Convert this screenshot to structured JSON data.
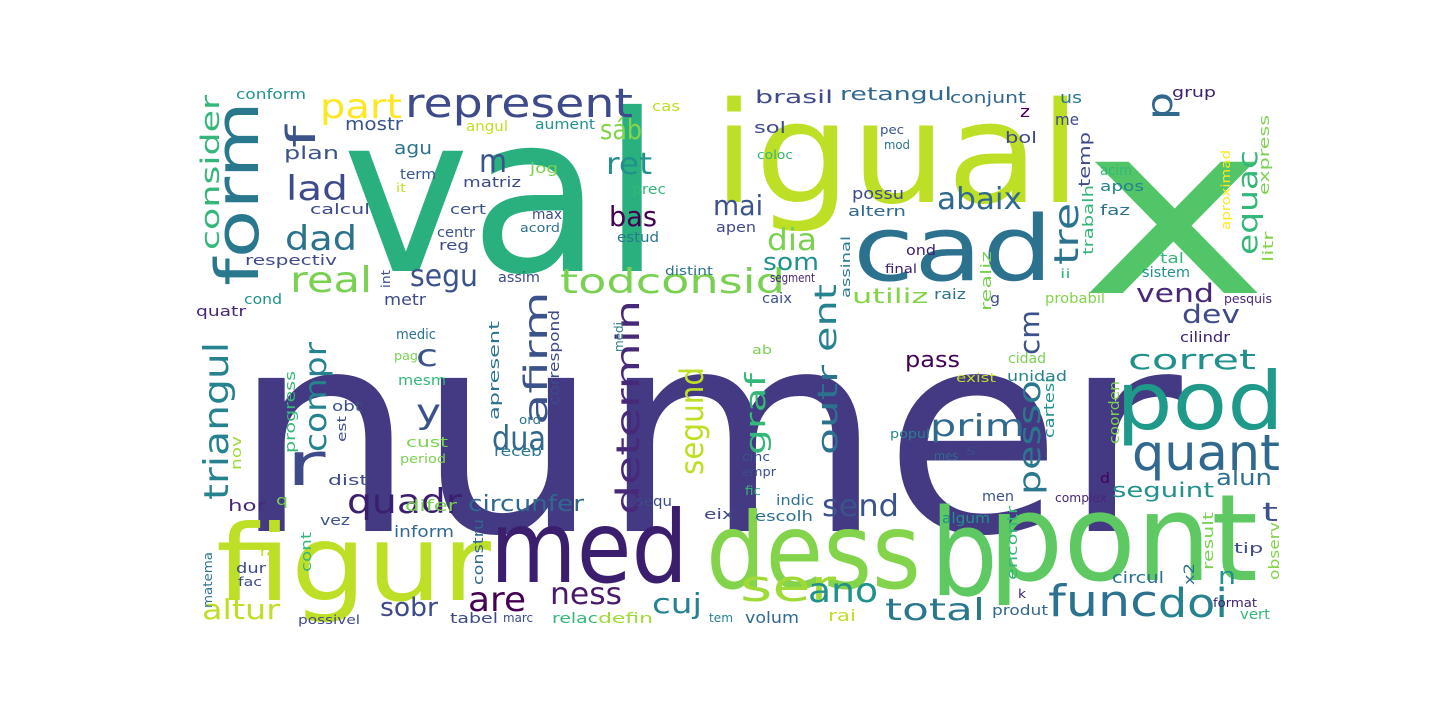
{
  "cloud": {
    "words": [
      {
        "text": "numer",
        "color": "#443983"
      },
      {
        "text": "val",
        "color": "#2ab07f"
      },
      {
        "text": "igual",
        "color": "#bddf26"
      },
      {
        "text": "x",
        "color": "#52c569"
      },
      {
        "text": "cad",
        "color": "#2c728e"
      },
      {
        "text": "pont",
        "color": "#5ec962"
      },
      {
        "text": "b",
        "color": "#5ec962"
      },
      {
        "text": "dess",
        "color": "#84d44b"
      },
      {
        "text": "figur",
        "color": "#bddf26"
      },
      {
        "text": "med",
        "color": "#3b1f6e"
      },
      {
        "text": "pod",
        "color": "#1f9a8a"
      },
      {
        "text": "form",
        "color": "#2a788e"
      },
      {
        "text": "r",
        "color": "#3e4a89"
      },
      {
        "text": "quant",
        "color": "#31688e"
      },
      {
        "text": "func",
        "color": "#2c728e"
      },
      {
        "text": "doi",
        "color": "#26828e"
      },
      {
        "text": "represent",
        "color": "#3e4a89"
      },
      {
        "text": "part",
        "color": "#fde725"
      },
      {
        "text": "f",
        "color": "#3b528b"
      },
      {
        "text": "p",
        "color": "#31688e"
      },
      {
        "text": "consider",
        "color": "#35b779"
      },
      {
        "text": "triangul",
        "color": "#26828e"
      },
      {
        "text": "todconsid",
        "color": "#7ad151"
      },
      {
        "text": "real",
        "color": "#7ad151"
      },
      {
        "text": "dad",
        "color": "#2c728e"
      },
      {
        "text": "lad",
        "color": "#3e4a89"
      },
      {
        "text": "m",
        "color": "#3b528b"
      },
      {
        "text": "sáb",
        "color": "#84d44b"
      },
      {
        "text": "ret",
        "color": "#21918c"
      },
      {
        "text": "bas",
        "color": "#440154"
      },
      {
        "text": "mai",
        "color": "#3b528b"
      },
      {
        "text": "dia",
        "color": "#7ad151"
      },
      {
        "text": "som",
        "color": "#21918c"
      },
      {
        "text": "abaix",
        "color": "#31688e"
      },
      {
        "text": "tre",
        "color": "#2c728e"
      },
      {
        "text": "equac",
        "color": "#35b779"
      },
      {
        "text": "segu",
        "color": "#3b528b"
      },
      {
        "text": "afirm",
        "color": "#3b528b"
      },
      {
        "text": "determin",
        "color": "#482878"
      },
      {
        "text": "dua",
        "color": "#31688e"
      },
      {
        "text": "segund",
        "color": "#bddf26"
      },
      {
        "text": "graf",
        "color": "#35b779"
      },
      {
        "text": "outr",
        "color": "#2c728e"
      },
      {
        "text": "ent",
        "color": "#26828e"
      },
      {
        "text": "cm",
        "color": "#3b528b"
      },
      {
        "text": "pesso",
        "color": "#2a788e"
      },
      {
        "text": "prim",
        "color": "#31688e"
      },
      {
        "text": "dev",
        "color": "#3e4a89"
      },
      {
        "text": "corret",
        "color": "#21918c"
      },
      {
        "text": "vend",
        "color": "#482878"
      },
      {
        "text": "compr",
        "color": "#26828e"
      },
      {
        "text": "c",
        "color": "#3b528b"
      },
      {
        "text": "y",
        "color": "#3b528b"
      },
      {
        "text": "quadr",
        "color": "#3b1f6e"
      },
      {
        "text": "circunfer",
        "color": "#31688e"
      },
      {
        "text": "ser",
        "color": "#a0da39"
      },
      {
        "text": "ano",
        "color": "#21918c"
      },
      {
        "text": "send",
        "color": "#3b528b"
      },
      {
        "text": "total",
        "color": "#2a788e"
      },
      {
        "text": "are",
        "color": "#440154"
      },
      {
        "text": "ness",
        "color": "#481a6c"
      },
      {
        "text": "cuj",
        "color": "#26828e"
      },
      {
        "text": "sobr",
        "color": "#3e4a89"
      },
      {
        "text": "altur",
        "color": "#bddf26"
      },
      {
        "text": "seguint",
        "color": "#21918c"
      },
      {
        "text": "alun",
        "color": "#2c728e"
      },
      {
        "text": "t",
        "color": "#3b528b"
      },
      {
        "text": "n",
        "color": "#21918c"
      },
      {
        "text": "pass",
        "color": "#440154"
      },
      {
        "text": "utiliz",
        "color": "#84d44b"
      },
      {
        "text": "brasil",
        "color": "#3e4a89"
      },
      {
        "text": "retangul",
        "color": "#31688e"
      },
      {
        "text": "conjunt",
        "color": "#31688e"
      },
      {
        "text": "mostr",
        "color": "#3b528b"
      },
      {
        "text": "plan",
        "color": "#3b528b"
      },
      {
        "text": "agu",
        "color": "#2c728e"
      },
      {
        "text": "conform",
        "color": "#21918c"
      },
      {
        "text": "us",
        "color": "#2a788e"
      },
      {
        "text": "me",
        "color": "#3e4a89"
      },
      {
        "text": "grup",
        "color": "#3b1f6e"
      },
      {
        "text": "sol",
        "color": "#3e4a89"
      },
      {
        "text": "bol",
        "color": "#3e4a89"
      },
      {
        "text": "z",
        "color": "#440154"
      },
      {
        "text": "pec",
        "color": "#3b528b"
      },
      {
        "text": "mod",
        "color": "#2c728e"
      },
      {
        "text": "coloc",
        "color": "#35b779"
      },
      {
        "text": "temp",
        "color": "#3e4a89"
      },
      {
        "text": "express",
        "color": "#7ad151"
      },
      {
        "text": "acim",
        "color": "#35b779"
      },
      {
        "text": "apos",
        "color": "#26828e"
      },
      {
        "text": "faz",
        "color": "#2c728e"
      },
      {
        "text": "trabalh",
        "color": "#35b779"
      },
      {
        "text": "aproximad",
        "color": "#fde725"
      },
      {
        "text": "possu",
        "color": "#3e4a89"
      },
      {
        "text": "altern",
        "color": "#31688e"
      },
      {
        "text": "apen",
        "color": "#3e4a89"
      },
      {
        "text": "ond",
        "color": "#3b1f6e"
      },
      {
        "text": "final",
        "color": "#3b1f6e"
      },
      {
        "text": "segment",
        "color": "#482878"
      },
      {
        "text": "assinal",
        "color": "#2a788e"
      },
      {
        "text": "tal",
        "color": "#35b779"
      },
      {
        "text": "sistem",
        "color": "#21918c"
      },
      {
        "text": "litr",
        "color": "#84d44b"
      },
      {
        "text": "realiz",
        "color": "#7ad151"
      },
      {
        "text": "raiz",
        "color": "#2c728e"
      },
      {
        "text": "caix",
        "color": "#3b528b"
      },
      {
        "text": "g",
        "color": "#3e4a89"
      },
      {
        "text": "probabil",
        "color": "#84d44b"
      },
      {
        "text": "pesquis",
        "color": "#482878"
      },
      {
        "text": "ii",
        "color": "#35b779"
      },
      {
        "text": "cilindr",
        "color": "#3b1f6e"
      },
      {
        "text": "cidad",
        "color": "#7ad151"
      },
      {
        "text": "unidad",
        "color": "#26828e"
      },
      {
        "text": "cartesi",
        "color": "#21918c"
      },
      {
        "text": "coorden",
        "color": "#7ad151"
      },
      {
        "text": "exist",
        "color": "#bddf26"
      },
      {
        "text": "ab",
        "color": "#7ad151"
      },
      {
        "text": "popul",
        "color": "#26828e"
      },
      {
        "text": "mes",
        "color": "#31688e"
      },
      {
        "text": "s",
        "color": "#3e4a89"
      },
      {
        "text": "d",
        "color": "#440154"
      },
      {
        "text": "complex",
        "color": "#482878"
      },
      {
        "text": "men",
        "color": "#3b528b"
      },
      {
        "text": "indic",
        "color": "#2c728e"
      },
      {
        "text": "escolh",
        "color": "#2c728e"
      },
      {
        "text": "algum",
        "color": "#21918c"
      },
      {
        "text": "eix",
        "color": "#3e4a89"
      },
      {
        "text": "fic",
        "color": "#35b779"
      },
      {
        "text": "empr",
        "color": "#3e4a89"
      },
      {
        "text": "cinc",
        "color": "#3b528b"
      },
      {
        "text": "sequ",
        "color": "#3e4a89"
      },
      {
        "text": "encontr",
        "color": "#35b779"
      },
      {
        "text": "result",
        "color": "#7ad151"
      },
      {
        "text": "observ",
        "color": "#84d44b"
      },
      {
        "text": "tip",
        "color": "#3e4a89"
      },
      {
        "text": "x2",
        "color": "#2c728e"
      },
      {
        "text": "circul",
        "color": "#2c728e"
      },
      {
        "text": "k",
        "color": "#3b1f6e"
      },
      {
        "text": "produt",
        "color": "#31688e"
      },
      {
        "text": "format",
        "color": "#3b1f6e"
      },
      {
        "text": "vert",
        "color": "#35b779"
      },
      {
        "text": "rai",
        "color": "#bddf26"
      },
      {
        "text": "volum",
        "color": "#31688e"
      },
      {
        "text": "tem",
        "color": "#26828e"
      },
      {
        "text": "defin",
        "color": "#a0da39"
      },
      {
        "text": "relac",
        "color": "#35b779"
      },
      {
        "text": "marc",
        "color": "#3e4a89"
      },
      {
        "text": "tabel",
        "color": "#3e4a89"
      },
      {
        "text": "constru",
        "color": "#31688e"
      },
      {
        "text": "inform",
        "color": "#31688e"
      },
      {
        "text": "difer",
        "color": "#7ad151"
      },
      {
        "text": "receb",
        "color": "#2a788e"
      },
      {
        "text": "period",
        "color": "#7ad151"
      },
      {
        "text": "cust",
        "color": "#7ad151"
      },
      {
        "text": "dist",
        "color": "#3e4a89"
      },
      {
        "text": "vez",
        "color": "#3b528b"
      },
      {
        "text": "hor",
        "color": "#482878"
      },
      {
        "text": "q",
        "color": "#7ad151"
      },
      {
        "text": "obt",
        "color": "#3b528b"
      },
      {
        "text": "est",
        "color": "#3e4a89"
      },
      {
        "text": "mesm",
        "color": "#35b779"
      },
      {
        "text": "progress",
        "color": "#35b779"
      },
      {
        "text": "nov",
        "color": "#a0da39"
      },
      {
        "text": "cont",
        "color": "#35b779"
      },
      {
        "text": "dur",
        "color": "#3e4a89"
      },
      {
        "text": "fac",
        "color": "#3e4a89"
      },
      {
        "text": "ra",
        "color": "#bddf26"
      },
      {
        "text": "matema",
        "color": "#2c728e"
      },
      {
        "text": "possivel",
        "color": "#3e4a89"
      },
      {
        "text": "quatr",
        "color": "#482878"
      },
      {
        "text": "cond",
        "color": "#21918c"
      },
      {
        "text": "respectiv",
        "color": "#3e4a89"
      },
      {
        "text": "metr",
        "color": "#3e4a89"
      },
      {
        "text": "medic",
        "color": "#2c728e"
      },
      {
        "text": "pag",
        "color": "#7ad151"
      },
      {
        "text": "int",
        "color": "#3b528b"
      },
      {
        "text": "assim",
        "color": "#3e4a89"
      },
      {
        "text": "apresent",
        "color": "#2c728e"
      },
      {
        "text": "correspond",
        "color": "#3e4a89"
      },
      {
        "text": "ord",
        "color": "#2c728e"
      },
      {
        "text": "medi",
        "color": "#2a788e"
      },
      {
        "text": "distint",
        "color": "#2c728e"
      },
      {
        "text": "centr",
        "color": "#3b528b"
      },
      {
        "text": "reg",
        "color": "#3e4a89"
      },
      {
        "text": "cert",
        "color": "#3b528b"
      },
      {
        "text": "calcul",
        "color": "#3e4a89"
      },
      {
        "text": "term",
        "color": "#3b528b"
      },
      {
        "text": "it",
        "color": "#bddf26"
      },
      {
        "text": "matriz",
        "color": "#3e4a89"
      },
      {
        "text": "jog",
        "color": "#7ad151"
      },
      {
        "text": "max",
        "color": "#3e4a89"
      },
      {
        "text": "acord",
        "color": "#2c728e"
      },
      {
        "text": "estud",
        "color": "#2a788e"
      },
      {
        "text": "prec",
        "color": "#35b779"
      },
      {
        "text": "aument",
        "color": "#21918c"
      },
      {
        "text": "angul",
        "color": "#bddf26"
      },
      {
        "text": "cas",
        "color": "#bddf26"
      }
    ]
  }
}
